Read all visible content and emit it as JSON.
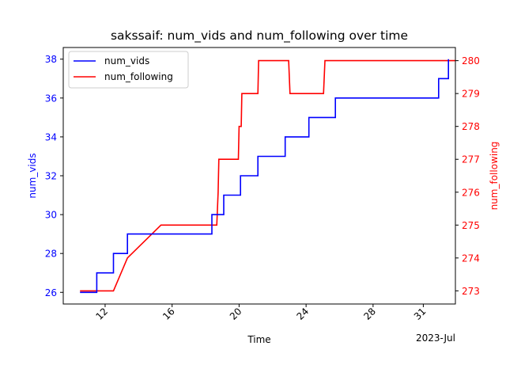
{
  "chart_data": {
    "type": "line",
    "title": "sakssaif: num_vids and num_following over time",
    "xlabel": "Time",
    "x_offset_label": "2023-Jul",
    "x_ticks": [
      "12",
      "16",
      "20",
      "24",
      "28",
      "31"
    ],
    "x_tick_dates": [
      "2023-07-12",
      "2023-07-16",
      "2023-07-20",
      "2023-07-24",
      "2023-07-28",
      "2023-07-31"
    ],
    "x_range": [
      "2023-07-09 12:00",
      "2023-08-01 22:00"
    ],
    "left_axis": {
      "label": "num_vids",
      "color": "#0000ff",
      "ylim": [
        25.4,
        38.6
      ],
      "ticks": [
        "26",
        "28",
        "30",
        "32",
        "34",
        "36",
        "38"
      ]
    },
    "right_axis": {
      "label": "num_following",
      "color": "#ff0000",
      "ylim": [
        272.6,
        280.4
      ],
      "ticks": [
        "273",
        "274",
        "275",
        "276",
        "277",
        "278",
        "279",
        "280"
      ]
    },
    "legend": {
      "position": "top-left"
    },
    "grid": false,
    "series": [
      {
        "name": "num_vids",
        "axis": "left",
        "color": "#0000ff",
        "step": true,
        "points": [
          [
            "2023-07-10 12:00",
            26
          ],
          [
            "2023-07-11 12:00",
            27
          ],
          [
            "2023-07-12 12:00",
            28
          ],
          [
            "2023-07-13 08:00",
            29
          ],
          [
            "2023-07-18 09:00",
            30
          ],
          [
            "2023-07-19 02:00",
            31
          ],
          [
            "2023-07-20 02:00",
            32
          ],
          [
            "2023-07-21 03:00",
            33
          ],
          [
            "2023-07-22 18:00",
            34
          ],
          [
            "2023-07-24 04:00",
            35
          ],
          [
            "2023-07-25 18:00",
            36
          ],
          [
            "2023-07-31 22:00",
            37
          ],
          [
            "2023-08-01 12:00",
            38
          ],
          [
            "2023-08-01 12:00",
            38
          ]
        ]
      },
      {
        "name": "num_following",
        "axis": "right",
        "color": "#ff0000",
        "step": false,
        "points": [
          [
            "2023-07-10 12:00",
            273
          ],
          [
            "2023-07-12 12:00",
            273
          ],
          [
            "2023-07-13 08:00",
            274
          ],
          [
            "2023-07-15 08:00",
            275
          ],
          [
            "2023-07-18 16:00",
            275
          ],
          [
            "2023-07-18 18:00",
            276
          ],
          [
            "2023-07-18 19:00",
            277
          ],
          [
            "2023-07-19 23:00",
            277
          ],
          [
            "2023-07-20 00:00",
            278
          ],
          [
            "2023-07-20 03:00",
            278
          ],
          [
            "2023-07-20 04:00",
            279
          ],
          [
            "2023-07-21 03:00",
            279
          ],
          [
            "2023-07-21 04:00",
            280
          ],
          [
            "2023-07-22 23:00",
            280
          ],
          [
            "2023-07-23 01:00",
            279
          ],
          [
            "2023-07-25 01:00",
            279
          ],
          [
            "2023-07-25 03:00",
            280
          ],
          [
            "2023-08-01 22:00",
            280
          ]
        ]
      }
    ]
  }
}
